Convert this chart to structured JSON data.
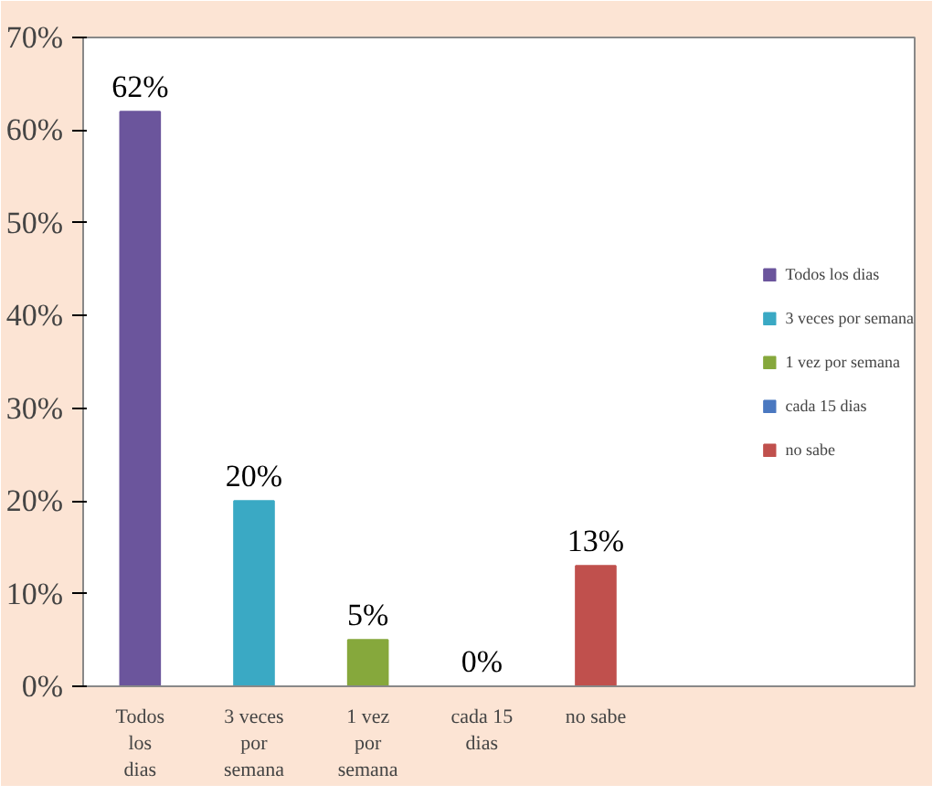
{
  "chart_data": {
    "type": "bar",
    "categories": [
      "Todos los dias",
      "3 veces por semana",
      "1 vez por semana",
      "cada 15 dias",
      "no sabe"
    ],
    "series": [
      {
        "name": "Todos los dias",
        "color": "#6b559c",
        "values": [
          62,
          null,
          null,
          null,
          null
        ]
      },
      {
        "name": "3 veces por semana",
        "color": "#3aa9c4",
        "values": [
          null,
          20,
          null,
          null,
          null
        ]
      },
      {
        "name": "1 vez por semana",
        "color": "#86a83c",
        "values": [
          null,
          null,
          5,
          null,
          null
        ]
      },
      {
        "name": "cada 15 dias",
        "color": "#4a78c0",
        "values": [
          null,
          null,
          null,
          0,
          null
        ]
      },
      {
        "name": "no sabe",
        "color": "#c0504d",
        "values": [
          null,
          null,
          null,
          null,
          13
        ]
      }
    ],
    "value_labels": [
      "62%",
      "20%",
      "5%",
      "0%",
      "13%"
    ],
    "ylim": [
      0,
      70
    ],
    "yticks": [
      {
        "value": 0,
        "label": "0%"
      },
      {
        "value": 10,
        "label": "10%"
      },
      {
        "value": 20,
        "label": "20%"
      },
      {
        "value": 30,
        "label": "30%"
      },
      {
        "value": 40,
        "label": "40%"
      },
      {
        "value": 50,
        "label": "50%"
      },
      {
        "value": 60,
        "label": "60%"
      },
      {
        "value": 70,
        "label": "70%"
      }
    ],
    "grid": false,
    "legend": "right"
  }
}
